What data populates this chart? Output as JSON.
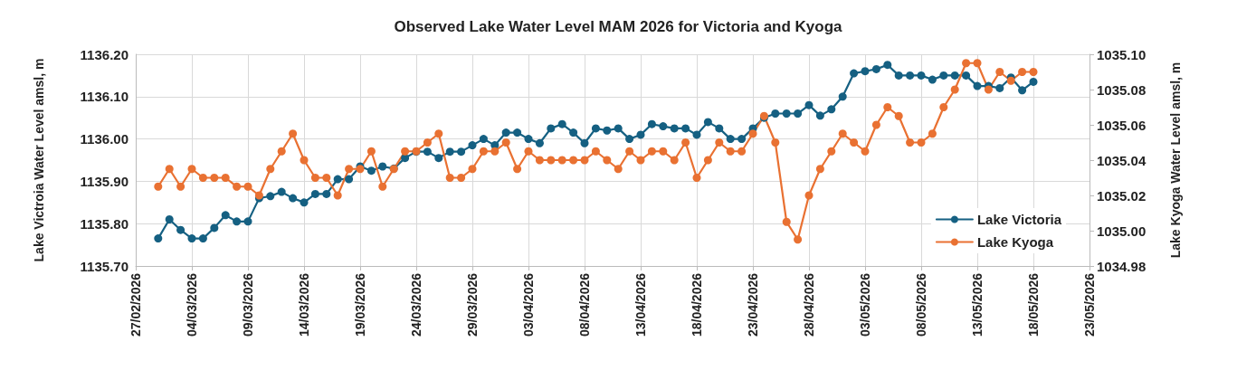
{
  "chart_data": {
    "type": "line",
    "title": "Observed Lake Water Level MAM 2026 for Victoria and Kyoga",
    "ylabel": "Lake Victroia Water Level amsl, m",
    "y2label": "Lake Kyoga Water Level amsl, m",
    "x": [
      "2026-03-01",
      "2026-03-02",
      "2026-03-03",
      "2026-03-04",
      "2026-03-05",
      "2026-03-06",
      "2026-03-07",
      "2026-03-08",
      "2026-03-09",
      "2026-03-10",
      "2026-03-11",
      "2026-03-12",
      "2026-03-13",
      "2026-03-14",
      "2026-03-15",
      "2026-03-16",
      "2026-03-17",
      "2026-03-18",
      "2026-03-19",
      "2026-03-20",
      "2026-03-21",
      "2026-03-22",
      "2026-03-23",
      "2026-03-24",
      "2026-03-25",
      "2026-03-26",
      "2026-03-27",
      "2026-03-28",
      "2026-03-29",
      "2026-03-30",
      "2026-03-31",
      "2026-04-01",
      "2026-04-02",
      "2026-04-03",
      "2026-04-04",
      "2026-04-05",
      "2026-04-06",
      "2026-04-07",
      "2026-04-08",
      "2026-04-09",
      "2026-04-10",
      "2026-04-11",
      "2026-04-12",
      "2026-04-13",
      "2026-04-14",
      "2026-04-15",
      "2026-04-16",
      "2026-04-17",
      "2026-04-18",
      "2026-04-19",
      "2026-04-20",
      "2026-04-21",
      "2026-04-22",
      "2026-04-23",
      "2026-04-24",
      "2026-04-25",
      "2026-04-26",
      "2026-04-27",
      "2026-04-28",
      "2026-04-29",
      "2026-04-30",
      "2026-05-01",
      "2026-05-02",
      "2026-05-03",
      "2026-05-04",
      "2026-05-05",
      "2026-05-06",
      "2026-05-07",
      "2026-05-08",
      "2026-05-09",
      "2026-05-10",
      "2026-05-11",
      "2026-05-12",
      "2026-05-13",
      "2026-05-14",
      "2026-05-15",
      "2026-05-16",
      "2026-05-17",
      "2026-05-18"
    ],
    "series": [
      {
        "name": "Lake Victoria",
        "color": "#156082",
        "values": [
          1135.765,
          1135.81,
          1135.785,
          1135.765,
          1135.765,
          1135.79,
          1135.82,
          1135.805,
          1135.805,
          1135.86,
          1135.865,
          1135.875,
          1135.86,
          1135.85,
          1135.87,
          1135.87,
          1135.905,
          1135.905,
          1135.935,
          1135.925,
          1135.935,
          1135.93,
          1135.955,
          1135.97,
          1135.97,
          1135.955,
          1135.97,
          1135.97,
          1135.985,
          1136.0,
          1135.985,
          1136.015,
          1136.015,
          1136.0,
          1135.99,
          1136.025,
          1136.035,
          1136.015,
          1135.99,
          1136.025,
          1136.02,
          1136.025,
          1136.0,
          1136.01,
          1136.035,
          1136.03,
          1136.025,
          1136.025,
          1136.01,
          1136.04,
          1136.025,
          1136.0,
          1136.0,
          1136.025,
          1136.05,
          1136.06,
          1136.06,
          1136.06,
          1136.08,
          1136.055,
          1136.07,
          1136.1,
          1136.155,
          1136.16,
          1136.165,
          1136.175,
          1136.15,
          1136.15,
          1136.15,
          1136.14,
          1136.15,
          1136.15,
          1136.15,
          1136.125,
          1136.125,
          1136.12,
          1136.145,
          1136.115,
          1136.135
        ]
      },
      {
        "name": "Lake Kyoga",
        "color": "#e97132",
        "axis": "y2",
        "values": [
          1035.025,
          1035.035,
          1035.025,
          1035.035,
          1035.03,
          1035.03,
          1035.03,
          1035.025,
          1035.025,
          1035.02,
          1035.035,
          1035.045,
          1035.055,
          1035.04,
          1035.03,
          1035.03,
          1035.02,
          1035.035,
          1035.035,
          1035.045,
          1035.025,
          1035.035,
          1035.045,
          1035.045,
          1035.05,
          1035.055,
          1035.03,
          1035.03,
          1035.035,
          1035.045,
          1035.045,
          1035.05,
          1035.035,
          1035.045,
          1035.04,
          1035.04,
          1035.04,
          1035.04,
          1035.04,
          1035.045,
          1035.04,
          1035.035,
          1035.045,
          1035.04,
          1035.045,
          1035.045,
          1035.04,
          1035.05,
          1035.03,
          1035.04,
          1035.05,
          1035.045,
          1035.045,
          1035.055,
          1035.065,
          1035.05,
          1035.005,
          1034.995,
          1035.02,
          1035.035,
          1035.045,
          1035.055,
          1035.05,
          1035.045,
          1035.06,
          1035.07,
          1035.065,
          1035.05,
          1035.05,
          1035.055,
          1035.07,
          1035.08,
          1035.095,
          1035.095,
          1035.08,
          1035.09,
          1035.085,
          1035.09,
          1035.09
        ]
      }
    ],
    "xlim": [
      "2026-02-27",
      "2026-05-23"
    ],
    "xticks": [
      {
        "value": "2026-02-27",
        "label": "27/02/2026"
      },
      {
        "value": "2026-03-04",
        "label": "04/03/2026"
      },
      {
        "value": "2026-03-09",
        "label": "09/03/2026"
      },
      {
        "value": "2026-03-14",
        "label": "14/03/2026"
      },
      {
        "value": "2026-03-19",
        "label": "19/03/2026"
      },
      {
        "value": "2026-03-24",
        "label": "24/03/2026"
      },
      {
        "value": "2026-03-29",
        "label": "29/03/2026"
      },
      {
        "value": "2026-04-03",
        "label": "03/04/2026"
      },
      {
        "value": "2026-04-08",
        "label": "08/04/2026"
      },
      {
        "value": "2026-04-13",
        "label": "13/04/2026"
      },
      {
        "value": "2026-04-18",
        "label": "18/04/2026"
      },
      {
        "value": "2026-04-23",
        "label": "23/04/2026"
      },
      {
        "value": "2026-04-28",
        "label": "28/04/2026"
      },
      {
        "value": "2026-05-03",
        "label": "03/05/2026"
      },
      {
        "value": "2026-05-08",
        "label": "08/05/2026"
      },
      {
        "value": "2026-05-13",
        "label": "13/05/2026"
      },
      {
        "value": "2026-05-18",
        "label": "18/05/2026"
      },
      {
        "value": "2026-05-23",
        "label": "23/05/2026"
      }
    ],
    "ylim": [
      1135.7,
      1136.2
    ],
    "yticks": [
      {
        "value": 1135.7,
        "label": "1135.70"
      },
      {
        "value": 1135.8,
        "label": "1135.80"
      },
      {
        "value": 1135.9,
        "label": "1135.90"
      },
      {
        "value": 1136.0,
        "label": "1136.00"
      },
      {
        "value": 1136.1,
        "label": "1136.10"
      },
      {
        "value": 1136.2,
        "label": "1136.20"
      }
    ],
    "y2lim": [
      1034.98,
      1035.1
    ],
    "y2ticks": [
      {
        "value": 1034.98,
        "label": "1034.98"
      },
      {
        "value": 1035.0,
        "label": "1035.00"
      },
      {
        "value": 1035.02,
        "label": "1035.02"
      },
      {
        "value": 1035.04,
        "label": "1035.04"
      },
      {
        "value": 1035.06,
        "label": "1035.06"
      },
      {
        "value": 1035.08,
        "label": "1035.08"
      },
      {
        "value": 1035.1,
        "label": "1035.10"
      }
    ],
    "grid": true,
    "legend": "bottom right",
    "marker": "circle",
    "line_style": "solid"
  }
}
